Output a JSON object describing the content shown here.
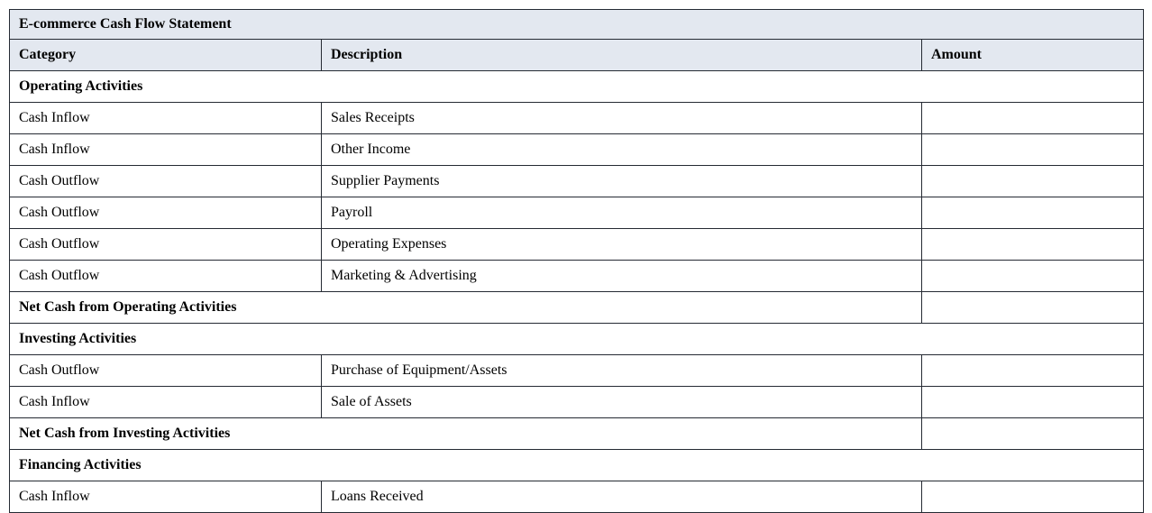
{
  "table": {
    "title": "E-commerce Cash Flow Statement",
    "columns": [
      "Category",
      "Description",
      "Amount"
    ],
    "rows": [
      {
        "type": "section",
        "label": "Operating Activities"
      },
      {
        "type": "data",
        "category": "Cash Inflow",
        "description": "Sales Receipts",
        "amount": ""
      },
      {
        "type": "data",
        "category": "Cash Inflow",
        "description": "Other Income",
        "amount": ""
      },
      {
        "type": "data",
        "category": "Cash Outflow",
        "description": "Supplier Payments",
        "amount": ""
      },
      {
        "type": "data",
        "category": "Cash Outflow",
        "description": "Payroll",
        "amount": ""
      },
      {
        "type": "data",
        "category": "Cash Outflow",
        "description": "Operating Expenses",
        "amount": ""
      },
      {
        "type": "data",
        "category": "Cash Outflow",
        "description": "Marketing & Advertising",
        "amount": ""
      },
      {
        "type": "total",
        "label": "Net Cash from Operating Activities",
        "amount": ""
      },
      {
        "type": "section",
        "label": "Investing Activities"
      },
      {
        "type": "data",
        "category": "Cash Outflow",
        "description": "Purchase of Equipment/Assets",
        "amount": ""
      },
      {
        "type": "data",
        "category": "Cash Inflow",
        "description": "Sale of Assets",
        "amount": ""
      },
      {
        "type": "total",
        "label": "Net Cash from Investing Activities",
        "amount": ""
      },
      {
        "type": "section",
        "label": "Financing Activities"
      },
      {
        "type": "data",
        "category": "Cash Inflow",
        "description": "Loans Received",
        "amount": ""
      }
    ],
    "colors": {
      "page_bg": "#ffffff",
      "header_bg": "#e3e8f0",
      "border": "#252a33",
      "text": "#000000"
    }
  }
}
